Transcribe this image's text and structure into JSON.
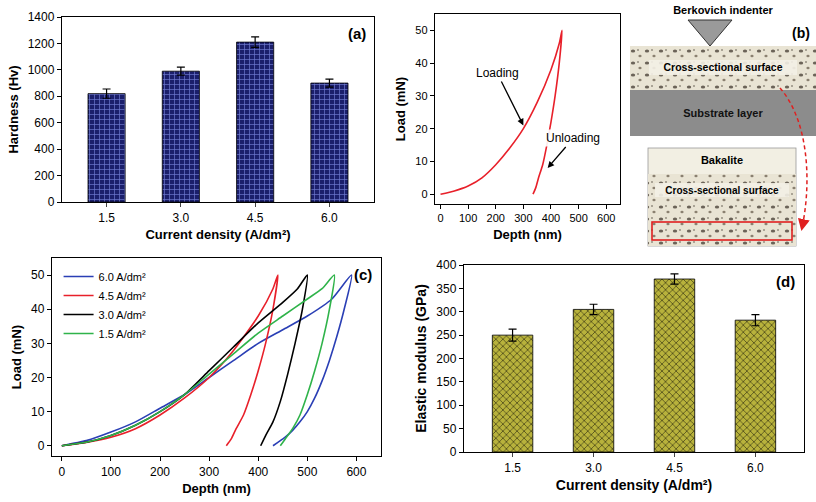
{
  "chart_data": [
    {
      "type": "bar",
      "panel_label": "(a)",
      "categories": [
        "1.5",
        "3.0",
        "4.5",
        "6.0"
      ],
      "values": [
        820,
        990,
        1210,
        900
      ],
      "errors": [
        35,
        30,
        40,
        30
      ],
      "color": "#1b1f6b",
      "marker": "grid",
      "x_label": "Current density (A/dm²)",
      "y_label": "Hardness (Hv)",
      "ylim": [
        0,
        1400
      ],
      "yticks": [
        0,
        200,
        400,
        600,
        800,
        1000,
        1200,
        1400
      ]
    },
    {
      "type": "line",
      "x_label": "Depth (nm)",
      "y_label": "Load (mN)",
      "xlim": [
        -20,
        650
      ],
      "xticks": [
        0,
        100,
        200,
        300,
        400,
        500,
        600
      ],
      "ylim": [
        -3,
        55
      ],
      "yticks": [
        0,
        10,
        20,
        30,
        40,
        50
      ],
      "series": [
        {
          "color": "#e8202a",
          "x": [
            0,
            50,
            100,
            150,
            200,
            250,
            300,
            350,
            400,
            430,
            440,
            430,
            415,
            400,
            385,
            370,
            355,
            345,
            335
          ],
          "values": [
            0,
            1,
            2.5,
            5,
            9,
            14,
            20,
            28,
            38,
            46,
            50,
            40,
            30,
            22,
            15,
            9,
            5,
            2,
            0
          ]
        }
      ],
      "annotations": [
        {
          "text": "Loading",
          "x": 300,
          "y": 21,
          "ax": 205,
          "ay": 37
        },
        {
          "text": "Unloading",
          "x": 388,
          "y": 8,
          "ax": 480,
          "ay": 17
        }
      ]
    },
    {
      "type": "line",
      "panel_label": "(c)",
      "legend": "top left",
      "x_label": "Depth (nm)",
      "y_label": "Load (mN)",
      "xlim": [
        -20,
        650
      ],
      "xticks": [
        0,
        100,
        200,
        300,
        400,
        500,
        600
      ],
      "ylim": [
        -3,
        55
      ],
      "yticks": [
        0,
        10,
        20,
        30,
        40,
        50
      ],
      "series": [
        {
          "name": "6.0 A/dm²",
          "color": "#2a3fb5",
          "x": [
            0,
            50,
            100,
            150,
            200,
            250,
            300,
            350,
            400,
            450,
            500,
            550,
            590,
            575,
            560,
            545,
            530,
            515,
            500,
            485,
            470,
            455,
            440,
            430
          ],
          "values": [
            0,
            1.5,
            4,
            7,
            11,
            15,
            20,
            25,
            30,
            34,
            38,
            43,
            50,
            40,
            32,
            25,
            19,
            14,
            10,
            7,
            4.5,
            2.5,
            1,
            0
          ]
        },
        {
          "name": "4.5 A/dm²",
          "color": "#e8202a",
          "x": [
            0,
            50,
            100,
            150,
            200,
            250,
            300,
            350,
            400,
            430,
            440,
            430,
            415,
            400,
            385,
            370,
            355,
            345,
            335
          ],
          "values": [
            0,
            1,
            2.5,
            5,
            9,
            14,
            20,
            28,
            38,
            46,
            50,
            40,
            30,
            22,
            15,
            9,
            5,
            2,
            0
          ]
        },
        {
          "name": "3.0 A/dm²",
          "color": "#000000",
          "x": [
            0,
            50,
            100,
            150,
            200,
            250,
            300,
            350,
            400,
            450,
            480,
            500,
            490,
            475,
            460,
            445,
            430,
            415,
            405
          ],
          "values": [
            0,
            1,
            3,
            6,
            10,
            15,
            22,
            29,
            36,
            42,
            46,
            50,
            40,
            30,
            21,
            13,
            7,
            3,
            0
          ]
        },
        {
          "name": "1.5 A/dm²",
          "color": "#2fb34a",
          "x": [
            0,
            50,
            100,
            150,
            200,
            250,
            300,
            350,
            400,
            450,
            500,
            530,
            555,
            545,
            530,
            515,
            500,
            485,
            470,
            455,
            445
          ],
          "values": [
            0,
            1,
            3,
            6,
            10,
            15,
            21,
            27,
            33,
            38,
            43,
            46,
            50,
            40,
            30,
            22,
            15,
            9,
            5,
            2,
            0
          ]
        }
      ]
    },
    {
      "type": "bar",
      "panel_label": "(d)",
      "categories": [
        "1.5",
        "3.0",
        "4.5",
        "6.0"
      ],
      "values": [
        250,
        305,
        370,
        282
      ],
      "errors": [
        13,
        11,
        11,
        12
      ],
      "color": "#b8b23c",
      "marker": "crosshatch",
      "x_label": "Current density (A/dm²)",
      "y_label": "Elastic modulus (GPa)",
      "ylim": [
        0,
        400
      ],
      "yticks": [
        0,
        50,
        100,
        150,
        200,
        250,
        300,
        350,
        400
      ]
    }
  ],
  "diagram": {
    "panel_label": "(b)",
    "indenter": "Berkovich indenter",
    "surface": "Cross-sectional surface",
    "substrate": "Substrate layer",
    "inset_top": "Bakalite",
    "inset_surface": "Cross-sectional surface"
  }
}
